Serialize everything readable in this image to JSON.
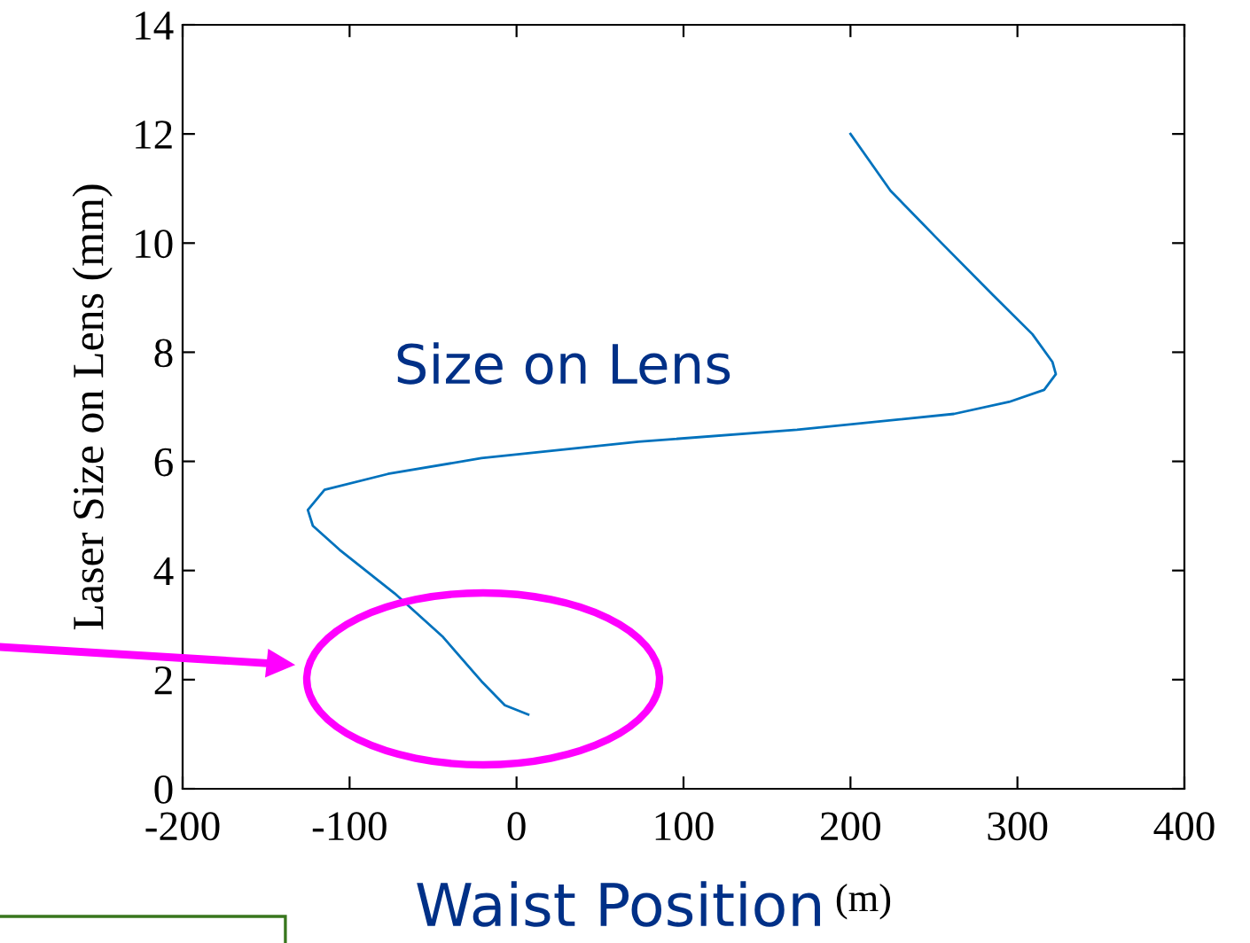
{
  "chart_data": {
    "type": "line",
    "xlabel": "Waist Position",
    "ylabel": "Laser Size on Lens (mm)",
    "annotations": [
      "Size on Lens",
      "(m)"
    ],
    "xlim": [
      -200,
      400
    ],
    "xticks": [
      -200,
      -100,
      0,
      100,
      200,
      300,
      400
    ],
    "ylim": [
      0,
      14
    ],
    "yticks": [
      0,
      2,
      4,
      6,
      8,
      10,
      12,
      14
    ],
    "grid": false,
    "series": [
      {
        "color": "#0072bd",
        "x": [
          200,
          224,
          252,
          285,
          309,
          321,
          323,
          316,
          295,
          262,
          168,
          73,
          -21,
          -77,
          -115,
          -125,
          -122,
          -106,
          -73,
          -44,
          -21,
          -7,
          7
        ],
        "values": [
          12,
          10.96,
          10.08,
          9.06,
          8.33,
          7.82,
          7.6,
          7.31,
          7.09,
          6.87,
          6.58,
          6.36,
          6.06,
          5.77,
          5.48,
          5.11,
          4.82,
          4.38,
          3.58,
          2.78,
          1.97,
          1.53,
          1.36
        ]
      }
    ]
  }
}
